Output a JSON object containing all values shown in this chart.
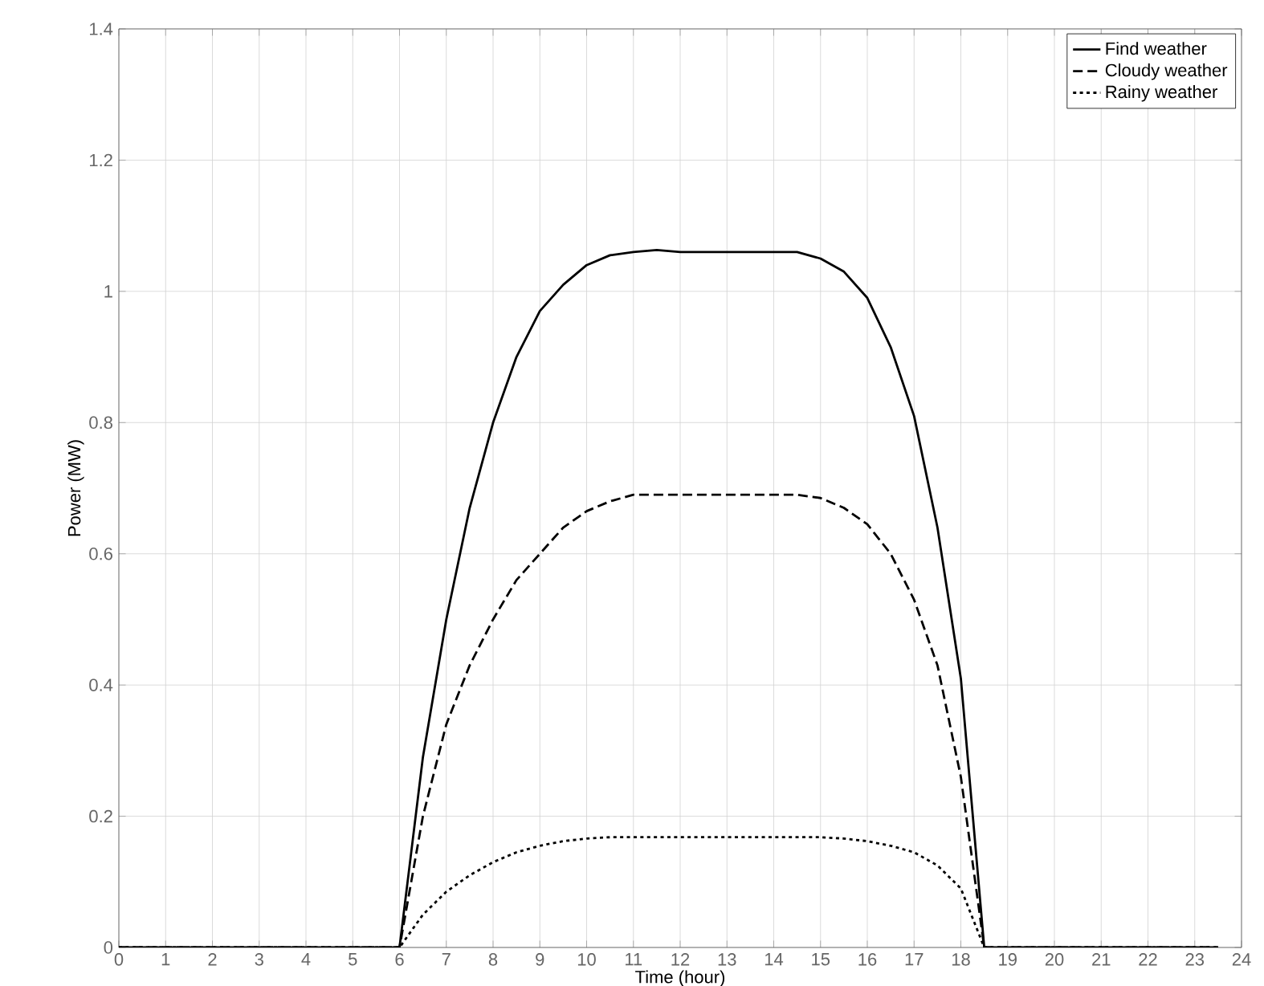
{
  "chart_data": {
    "type": "line",
    "xlabel": "Time (hour)",
    "ylabel": "Power (MW)",
    "xlim": [
      0,
      24
    ],
    "ylim": [
      0,
      1.4
    ],
    "xticks": [
      0,
      1,
      2,
      3,
      4,
      5,
      6,
      7,
      8,
      9,
      10,
      11,
      12,
      13,
      14,
      15,
      16,
      17,
      18,
      19,
      20,
      21,
      22,
      23,
      24
    ],
    "yticks": [
      0,
      0.2,
      0.4,
      0.6,
      0.8,
      1,
      1.2,
      1.4
    ],
    "grid": true,
    "legend": "top right",
    "marker": "none",
    "x": [
      0,
      6,
      6.5,
      7,
      7.5,
      8,
      8.5,
      9,
      9.5,
      10,
      10.5,
      11,
      11.5,
      12,
      12.5,
      13,
      13.5,
      14,
      14.5,
      15,
      15.5,
      16,
      16.5,
      17,
      17.5,
      18,
      18.5,
      23.5
    ],
    "series": [
      {
        "name": "Find weather",
        "color": "#000000",
        "line_style": "solid",
        "values": [
          0,
          0,
          0.29,
          0.5,
          0.67,
          0.8,
          0.9,
          0.97,
          1.01,
          1.04,
          1.055,
          1.06,
          1.063,
          1.06,
          1.06,
          1.06,
          1.06,
          1.06,
          1.06,
          1.05,
          1.03,
          0.99,
          0.915,
          0.81,
          0.64,
          0.41,
          0,
          0
        ]
      },
      {
        "name": "Cloudy weather",
        "color": "#000000",
        "line_style": "dashed",
        "values": [
          0,
          0,
          0.2,
          0.34,
          0.43,
          0.5,
          0.56,
          0.6,
          0.64,
          0.665,
          0.68,
          0.69,
          0.69,
          0.69,
          0.69,
          0.69,
          0.69,
          0.69,
          0.69,
          0.685,
          0.67,
          0.645,
          0.6,
          0.53,
          0.43,
          0.26,
          0,
          0
        ]
      },
      {
        "name": "Rainy weather",
        "color": "#000000",
        "line_style": "dotted",
        "values": [
          0,
          0,
          0.05,
          0.085,
          0.11,
          0.13,
          0.145,
          0.155,
          0.162,
          0.166,
          0.168,
          0.168,
          0.168,
          0.168,
          0.168,
          0.168,
          0.168,
          0.168,
          0.168,
          0.168,
          0.166,
          0.162,
          0.155,
          0.145,
          0.125,
          0.09,
          0,
          0
        ]
      }
    ]
  }
}
